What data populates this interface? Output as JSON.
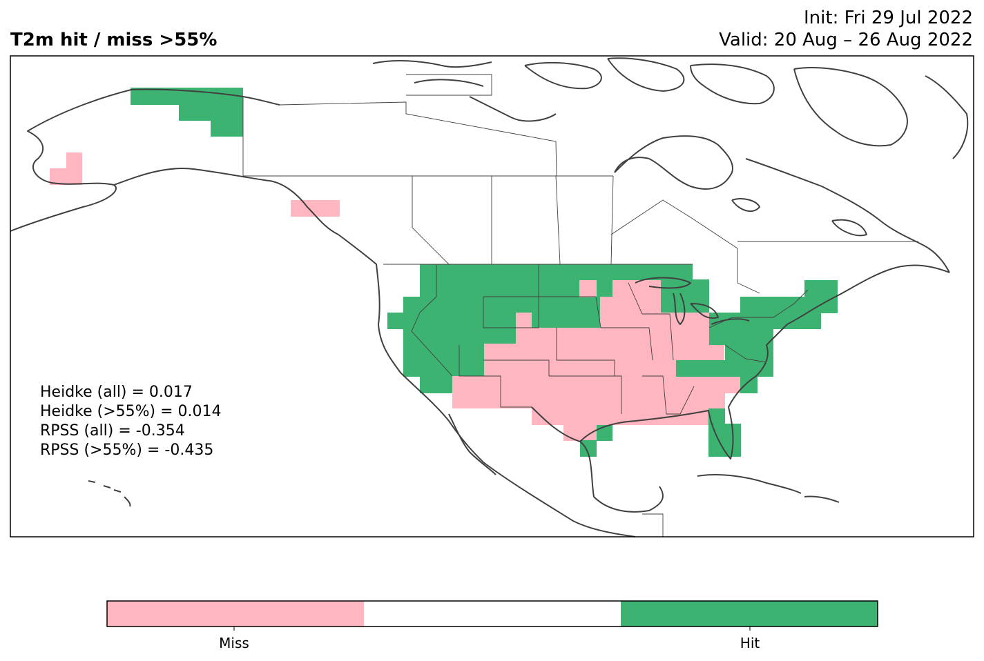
{
  "title": "T2m hit / miss  >55%",
  "init_line": "Init: Fri 29 Jul 2022",
  "valid_line": "Valid: 20 Aug – 26 Aug 2022",
  "scores": [
    "Heidke (all) = 0.017",
    "Heidke (>55%) = 0.014",
    "RPSS (all) = -0.354",
    "RPSS (>55%) = -0.435"
  ],
  "legend": {
    "categories": [
      {
        "label": "Miss",
        "color": "#ffb6c1"
      },
      {
        "label": "",
        "color": "#ffffff"
      },
      {
        "label": "Hit",
        "color": "#3cb371"
      }
    ]
  },
  "colors": {
    "miss": "#ffb6c1",
    "hit": "#3cb371",
    "coast": "#404040"
  }
}
